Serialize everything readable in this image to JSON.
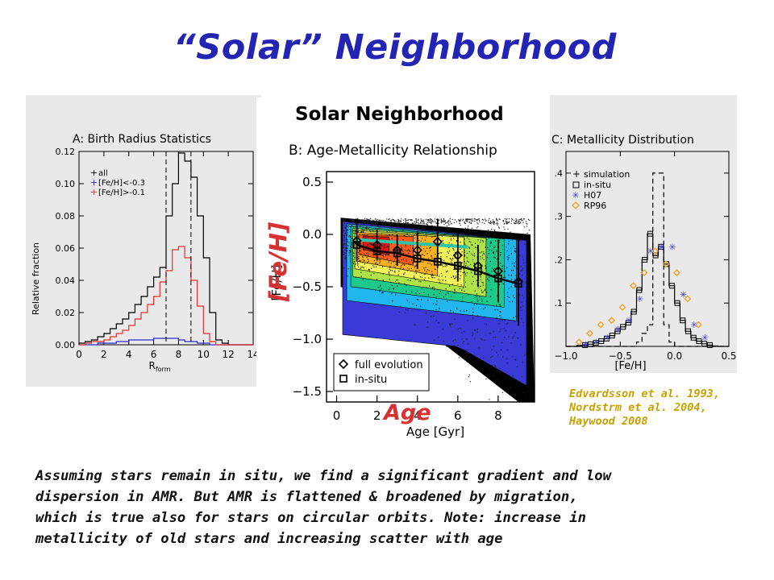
{
  "title": "“Solar” Neighborhood",
  "overlay": {
    "feh_label": "[Fe/H]",
    "age_label": "Age"
  },
  "references": [
    "Edvardsson et al. 1993,",
    "Nordstrm et al. 2004,",
    "Haywood 2008"
  ],
  "caption_lines": [
    "Assuming stars remain in situ, we find a significant gradient and low",
    "dispersion in AMR.  But AMR is flattened & broadened by migration,",
    "which is true also for stars on circular orbits.  Note: increase in",
    "metallicity of old stars and increasing scatter with age"
  ],
  "colors": {
    "title": "#2323b4",
    "overlay_text": "#d83131",
    "references": "#c9a000",
    "contour_fill": [
      "#3a3ad6",
      "#22b6ee",
      "#1ec88a",
      "#aee44a",
      "#f2f25a",
      "#ffb020",
      "#ff5a1a",
      "#e01818"
    ],
    "fit_line": "#2ec4a8"
  },
  "chart_data": [
    {
      "panel": "A",
      "type": "line",
      "title": "A: Birth Radius Statistics",
      "xlabel": "R",
      "xlabel_sub": "form",
      "ylabel": "Relative fraction",
      "xlim": [
        0,
        14
      ],
      "ylim": [
        0,
        0.12
      ],
      "xticks": [
        "0",
        "2",
        "4",
        "6",
        "8",
        "10",
        "12",
        "14"
      ],
      "yticks": [
        "0.00",
        "0.02",
        "0.04",
        "0.06",
        "0.08",
        "0.10",
        "0.12"
      ],
      "legend_placement": "top-left",
      "bin_edges": [
        0,
        0.5,
        1,
        1.5,
        2,
        2.5,
        3,
        3.5,
        4,
        4.5,
        5,
        5.5,
        6,
        6.5,
        7,
        7.5,
        8,
        8.5,
        9,
        9.5,
        10,
        10.5,
        11,
        11.5,
        12,
        12.5,
        13,
        13.5,
        14
      ],
      "series": [
        {
          "name": "all",
          "color": "#000000",
          "values": [
            0.001,
            0.002,
            0.003,
            0.005,
            0.007,
            0.01,
            0.013,
            0.016,
            0.02,
            0.025,
            0.03,
            0.036,
            0.042,
            0.048,
            0.08,
            0.1,
            0.119,
            0.114,
            0.104,
            0.08,
            0.054,
            0.02,
            0.003,
            0.001,
            0.0,
            0.0,
            0.0,
            0.0
          ]
        },
        {
          "name": "[Fe/H]<-0.3",
          "color": "#2a2acc",
          "values": [
            0.0,
            0.0,
            0.0,
            0.001,
            0.001,
            0.001,
            0.002,
            0.002,
            0.003,
            0.003,
            0.003,
            0.003,
            0.004,
            0.004,
            0.004,
            0.004,
            0.003,
            0.002,
            0.002,
            0.001,
            0.001,
            0.0,
            0.0,
            0.0,
            0.0,
            0.0,
            0.0,
            0.0
          ]
        },
        {
          "name": "[Fe/H]>-0.1",
          "color": "#e53030",
          "values": [
            0.0,
            0.001,
            0.002,
            0.002,
            0.003,
            0.005,
            0.007,
            0.009,
            0.012,
            0.016,
            0.02,
            0.025,
            0.03,
            0.039,
            0.046,
            0.059,
            0.061,
            0.054,
            0.04,
            0.024,
            0.007,
            0.002,
            0.0,
            0.0,
            0.0,
            0.0,
            0.0,
            0.0
          ]
        }
      ],
      "reference_lines_x": [
        7.0,
        9.0
      ]
    },
    {
      "panel": "B",
      "type": "scatter",
      "heading": "Solar Neighborhood",
      "title": "B: Age-Metallicity Relationship",
      "xlabel": "Age [Gyr]",
      "ylabel": "[Fe/H]",
      "xlim": [
        -0.5,
        9.8
      ],
      "ylim": [
        -1.6,
        0.6
      ],
      "xticks": [
        "0",
        "2",
        "4",
        "6",
        "8"
      ],
      "yticks": [
        "0.5",
        "0.0",
        "−0.5",
        "−1.0",
        "−1.5"
      ],
      "legend_placement": "bottom-left",
      "series": [
        {
          "name": "full evolution",
          "marker": "diamond",
          "x": [
            1.0,
            2.0,
            3.0,
            4.0,
            5.0,
            6.0,
            7.0,
            8.0,
            9.0
          ],
          "y": [
            -0.06,
            -0.1,
            -0.15,
            -0.15,
            -0.07,
            -0.2,
            -0.3,
            -0.35,
            -0.45
          ],
          "yerr": [
            0.2,
            0.15,
            0.15,
            0.18,
            0.22,
            0.25,
            0.2,
            0.3,
            0.42
          ]
        },
        {
          "name": "in-situ",
          "marker": "square",
          "x": [
            1.0,
            2.0,
            3.0,
            4.0,
            5.0,
            6.0,
            7.0,
            8.0,
            9.0
          ],
          "y": [
            -0.1,
            -0.16,
            -0.18,
            -0.23,
            -0.26,
            -0.3,
            -0.35,
            -0.42,
            -0.47
          ],
          "yerr": [
            0.05,
            0.05,
            0.05,
            0.06,
            0.06,
            0.06,
            0.07,
            0.07,
            0.08
          ]
        }
      ],
      "fit_line": {
        "x": [
          1.0,
          6.5
        ],
        "y": [
          -0.05,
          -0.12
        ]
      }
    },
    {
      "panel": "C",
      "type": "line",
      "title": "C: Metallicity Distribution",
      "xlabel": "[Fe/H]",
      "xlim": [
        -1.0,
        0.5
      ],
      "ylim": [
        0,
        0.45
      ],
      "xticks": [
        "−1.0",
        "−0.5",
        "0.0",
        "0.5"
      ],
      "yticks": [
        ".1",
        ".2",
        ".3",
        ".4"
      ],
      "legend_placement": "top-left",
      "bin_edges": [
        -1.0,
        -0.95,
        -0.9,
        -0.85,
        -0.8,
        -0.75,
        -0.7,
        -0.65,
        -0.6,
        -0.55,
        -0.5,
        -0.45,
        -0.4,
        -0.35,
        -0.3,
        -0.25,
        -0.2,
        -0.15,
        -0.1,
        -0.05,
        0.0,
        0.05,
        0.1,
        0.15,
        0.2,
        0.25,
        0.3,
        0.35,
        0.4,
        0.45,
        0.5
      ],
      "series": [
        {
          "name": "simulation",
          "marker": "none",
          "line": "solid",
          "values": [
            0.0,
            0.0,
            0.002,
            0.003,
            0.005,
            0.008,
            0.012,
            0.018,
            0.025,
            0.035,
            0.045,
            0.055,
            0.08,
            0.13,
            0.2,
            0.26,
            0.21,
            0.23,
            0.19,
            0.14,
            0.1,
            0.06,
            0.035,
            0.02,
            0.012,
            0.006,
            0.003,
            0.001,
            0.0,
            0.0
          ]
        },
        {
          "name": "in-situ",
          "marker": "square",
          "line": "dashed",
          "values": [
            0.0,
            0.0,
            0.0,
            0.0,
            0.0,
            0.0,
            0.0,
            0.0,
            0.0,
            0.0,
            0.0,
            0.0,
            0.0,
            0.01,
            0.03,
            0.05,
            0.4,
            0.4,
            0.05,
            0.01,
            0.0,
            0.0,
            0.0,
            0.0,
            0.0,
            0.0,
            0.0,
            0.0,
            0.0,
            0.0
          ]
        },
        {
          "name": "H07",
          "marker": "asterisk",
          "color": "#3a3ae0",
          "x": [
            -0.82,
            -0.72,
            -0.62,
            -0.52,
            -0.42,
            -0.32,
            -0.22,
            -0.12,
            -0.02,
            0.08,
            0.18,
            0.28
          ],
          "y": [
            0.005,
            0.01,
            0.02,
            0.04,
            0.06,
            0.11,
            0.22,
            0.23,
            0.23,
            0.12,
            0.05,
            0.02
          ]
        },
        {
          "name": "RP96",
          "marker": "diamond",
          "color": "#f0a020",
          "x": [
            -0.88,
            -0.78,
            -0.68,
            -0.58,
            -0.48,
            -0.38,
            -0.28,
            -0.18,
            -0.08,
            0.02,
            0.12,
            0.22
          ],
          "y": [
            0.01,
            0.03,
            0.05,
            0.06,
            0.09,
            0.14,
            0.17,
            0.22,
            0.19,
            0.17,
            0.11,
            0.05
          ]
        }
      ]
    }
  ]
}
